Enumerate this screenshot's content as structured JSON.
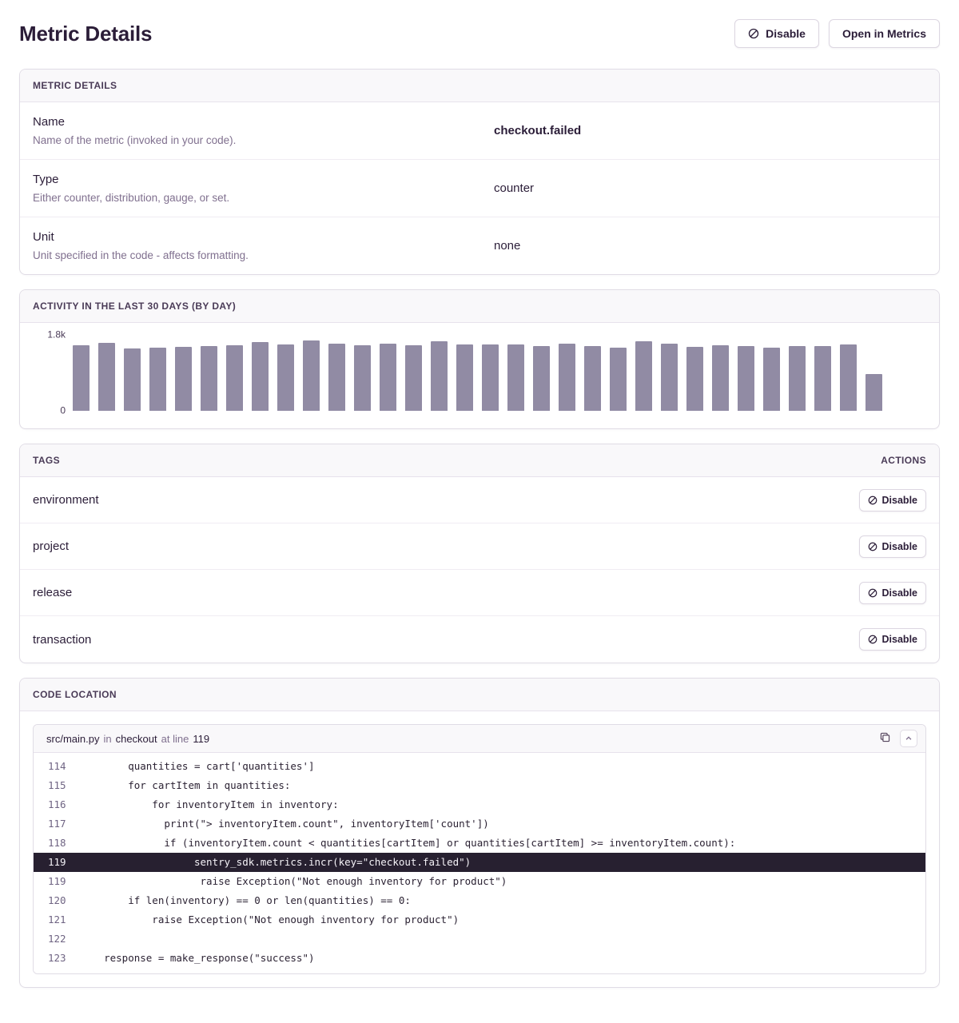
{
  "page": {
    "title": "Metric Details"
  },
  "header": {
    "disable_label": "Disable",
    "open_label": "Open in Metrics"
  },
  "metric_details": {
    "header": "METRIC DETAILS",
    "rows": [
      {
        "label": "Name",
        "description": "Name of the metric (invoked in your code).",
        "value": "checkout.failed",
        "bold": true
      },
      {
        "label": "Type",
        "description": "Either counter, distribution, gauge, or set.",
        "value": "counter",
        "bold": false
      },
      {
        "label": "Unit",
        "description": "Unit specified in the code - affects formatting.",
        "value": "none",
        "bold": false
      }
    ]
  },
  "activity": {
    "header": "ACTIVITY IN THE LAST 30 DAYS (BY DAY)"
  },
  "chart_data": {
    "type": "bar",
    "title": "ACTIVITY IN THE LAST 30 DAYS (BY DAY)",
    "values": [
      1540,
      1600,
      1455,
      1475,
      1495,
      1515,
      1535,
      1615,
      1555,
      1655,
      1575,
      1535,
      1575,
      1535,
      1635,
      1555,
      1555,
      1555,
      1515,
      1575,
      1515,
      1475,
      1635,
      1575,
      1495,
      1535,
      1515,
      1475,
      1515,
      1515,
      1555,
      870
    ],
    "ylim": [
      0,
      1800
    ],
    "y_max_label": "1.8k",
    "y_min_label": "0",
    "bar_color": "#918ba4",
    "grid": false,
    "legend": false,
    "x_tick_labels": []
  },
  "tags": {
    "header": "TAGS",
    "actions_header": "ACTIONS",
    "disable_label": "Disable",
    "items": [
      "environment",
      "project",
      "release",
      "transaction"
    ]
  },
  "code_location": {
    "header": "CODE LOCATION",
    "file": "src/main.py",
    "in_word": "in",
    "function": "checkout",
    "at_words": "at line",
    "line_number": "119",
    "lines": [
      {
        "no": "114",
        "text": "        quantities = cart['quantities']",
        "highlight": false
      },
      {
        "no": "115",
        "text": "        for cartItem in quantities:",
        "highlight": false
      },
      {
        "no": "116",
        "text": "            for inventoryItem in inventory:",
        "highlight": false
      },
      {
        "no": "117",
        "text": "              print(\"> inventoryItem.count\", inventoryItem['count'])",
        "highlight": false
      },
      {
        "no": "118",
        "text": "              if (inventoryItem.count < quantities[cartItem] or quantities[cartItem] >= inventoryItem.count):",
        "highlight": false
      },
      {
        "no": "119",
        "text": "                   sentry_sdk.metrics.incr(key=\"checkout.failed\")",
        "highlight": true
      },
      {
        "no": "119",
        "text": "                    raise Exception(\"Not enough inventory for product\")",
        "highlight": false
      },
      {
        "no": "120",
        "text": "        if len(inventory) == 0 or len(quantities) == 0:",
        "highlight": false
      },
      {
        "no": "121",
        "text": "            raise Exception(\"Not enough inventory for product\")",
        "highlight": false
      },
      {
        "no": "122",
        "text": "",
        "highlight": false
      },
      {
        "no": "123",
        "text": "    response = make_response(\"success\")",
        "highlight": false
      }
    ]
  },
  "colors": {
    "text_dark": "#2b1d38",
    "text_muted": "#80708f",
    "border": "#e0dce5",
    "panel_header_bg": "#f9f8fa",
    "bar": "#918ba4",
    "code_highlight_bg": "#272030"
  }
}
